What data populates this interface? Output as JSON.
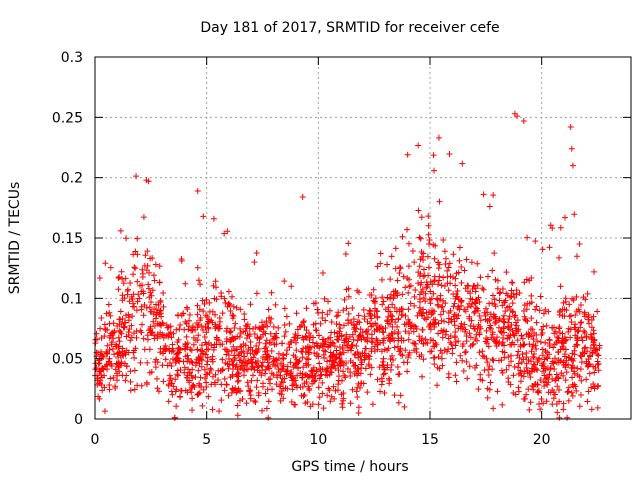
{
  "chart_data": {
    "type": "scatter",
    "title": "Day 181 of 2017, SRMTID for receiver cefe",
    "xlabel": "GPS time / hours",
    "ylabel": "SRMTID / TECUs",
    "xlim": [
      0,
      24
    ],
    "ylim": [
      0,
      0.3
    ],
    "xticks": [
      0,
      5,
      10,
      15,
      20
    ],
    "xtick_labels": [
      "0",
      "5",
      "10",
      "15",
      "20"
    ],
    "yticks": [
      0,
      0.05,
      0.1,
      0.15,
      0.2,
      0.25,
      0.3
    ],
    "ytick_labels": [
      "0",
      "0.05",
      "0.1",
      "0.15",
      "0.2",
      "0.25",
      "0.3"
    ],
    "grid": true,
    "marker": "plus",
    "series": [
      {
        "name": "SRMTID",
        "color": "#ff0000",
        "n_points": 2400,
        "seed": 181,
        "time_range": [
          0,
          22.6
        ],
        "profile_note": "dense scatter of values derived from the plotted envelope",
        "envelope": [
          {
            "t": 0.0,
            "base": 0.045,
            "spread": 0.035
          },
          {
            "t": 1.0,
            "base": 0.06,
            "spread": 0.05
          },
          {
            "t": 2.0,
            "base": 0.09,
            "spread": 0.08
          },
          {
            "t": 2.5,
            "base": 0.08,
            "spread": 0.08
          },
          {
            "t": 3.5,
            "base": 0.05,
            "spread": 0.06
          },
          {
            "t": 5.0,
            "base": 0.06,
            "spread": 0.06
          },
          {
            "t": 7.0,
            "base": 0.05,
            "spread": 0.045
          },
          {
            "t": 9.0,
            "base": 0.05,
            "spread": 0.045
          },
          {
            "t": 11.0,
            "base": 0.055,
            "spread": 0.05
          },
          {
            "t": 13.0,
            "base": 0.065,
            "spread": 0.06
          },
          {
            "t": 14.5,
            "base": 0.1,
            "spread": 0.08
          },
          {
            "t": 16.0,
            "base": 0.09,
            "spread": 0.07
          },
          {
            "t": 17.5,
            "base": 0.07,
            "spread": 0.06
          },
          {
            "t": 19.0,
            "base": 0.07,
            "spread": 0.07
          },
          {
            "t": 20.0,
            "base": 0.05,
            "spread": 0.05
          },
          {
            "t": 21.5,
            "base": 0.06,
            "spread": 0.07
          },
          {
            "t": 22.6,
            "base": 0.05,
            "spread": 0.04
          }
        ],
        "spikes": [
          {
            "t": 2.3,
            "value": 0.198
          },
          {
            "t": 2.4,
            "value": 0.197
          },
          {
            "t": 4.6,
            "value": 0.189
          },
          {
            "t": 9.3,
            "value": 0.184
          },
          {
            "t": 14.0,
            "value": 0.219
          },
          {
            "t": 15.4,
            "value": 0.233
          },
          {
            "t": 18.8,
            "value": 0.253
          },
          {
            "t": 18.9,
            "value": 0.251
          },
          {
            "t": 19.2,
            "value": 0.247
          },
          {
            "t": 21.3,
            "value": 0.242
          },
          {
            "t": 21.35,
            "value": 0.224
          },
          {
            "t": 21.4,
            "value": 0.21
          }
        ]
      }
    ]
  }
}
